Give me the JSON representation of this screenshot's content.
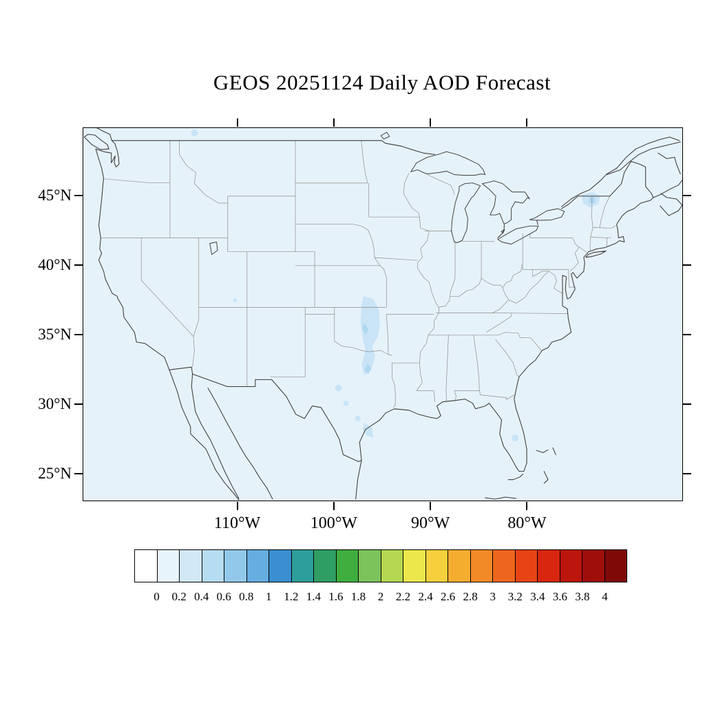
{
  "title": "GEOS 20251124 Daily AOD Forecast",
  "map": {
    "lat_ticks": [
      "45°N",
      "40°N",
      "35°N",
      "30°N",
      "25°N"
    ],
    "lon_ticks": [
      "110°W",
      "100°W",
      "90°W",
      "80°W"
    ],
    "field_color": "#e6f2fa",
    "patch_color": "#c9e4f6",
    "patch_core_color": "#afd8f1",
    "coast_color": "#3a3a3a",
    "state_line_color": "#8d8d8d"
  },
  "colorbar": {
    "tick_labels": [
      "0",
      "0.2",
      "0.4",
      "0.6",
      "0.8",
      "1",
      "1.2",
      "1.4",
      "1.6",
      "1.8",
      "2",
      "2.2",
      "2.4",
      "2.6",
      "2.8",
      "3",
      "3.2",
      "3.4",
      "3.6",
      "3.8",
      "4"
    ],
    "colors": [
      "#ffffff",
      "#e8f4fb",
      "#d2e8f7",
      "#b6dcf2",
      "#92c9ea",
      "#66ade0",
      "#3a8fd1",
      "#2e9e9a",
      "#2f9e64",
      "#3fae3f",
      "#7cc35c",
      "#b5d752",
      "#ece84c",
      "#f5d03c",
      "#f5ad30",
      "#f28a26",
      "#ee661e",
      "#e74416",
      "#d8260f",
      "#bc150c",
      "#9e0e0b",
      "#7e0a08"
    ],
    "value_min": "0",
    "value_max": "4"
  }
}
